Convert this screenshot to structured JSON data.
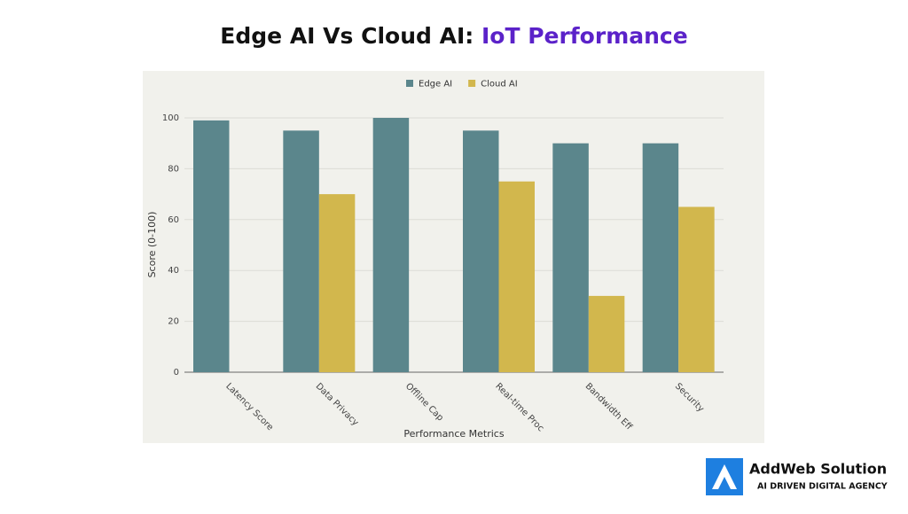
{
  "chart_data": {
    "type": "bar",
    "title": "Edge AI Vs Cloud AI:",
    "title_highlight": "IoT Performance",
    "x_label": "Performance Metrics",
    "y_label": "Score (0-100)",
    "categories": [
      "Latency Score",
      "Data Privacy",
      "Offline Cap",
      "Real-time Proc",
      "Bandwidth Eff",
      "Security"
    ],
    "series": [
      {
        "name": "Edge AI",
        "color": "#5b868c",
        "values": [
          99,
          95,
          100,
          95,
          90,
          90
        ]
      },
      {
        "name": "Cloud AI",
        "color": "#d2b74d",
        "values": [
          null,
          70,
          null,
          75,
          30,
          65
        ]
      }
    ],
    "ylim": [
      0,
      100
    ],
    "yticks": [
      0,
      20,
      40,
      60,
      80,
      100
    ],
    "grid": true,
    "legend": "top"
  },
  "branding": {
    "name": "AddWeb Solution",
    "tagline": "AI DRIVEN DIGITAL AGENCY"
  }
}
